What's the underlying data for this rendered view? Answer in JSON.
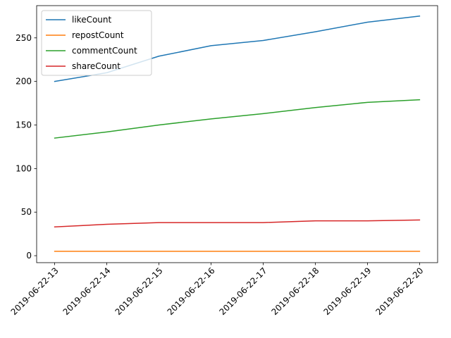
{
  "chart_data": {
    "type": "line",
    "title": "",
    "xlabel": "",
    "ylabel": "",
    "categories": [
      "2019-06-22-13",
      "2019-06-22-14",
      "2019-06-22-15",
      "2019-06-22-16",
      "2019-06-22-17",
      "2019-06-22-18",
      "2019-06-22-19",
      "2019-06-22-20"
    ],
    "ylim": [
      -8,
      287
    ],
    "yticks": [
      0,
      50,
      100,
      150,
      200,
      250
    ],
    "grid": false,
    "legend_position": "top-left",
    "series": [
      {
        "name": "likeCount",
        "color": "#1f77b4",
        "values": [
          200,
          210,
          229,
          241,
          247,
          257,
          268,
          275
        ]
      },
      {
        "name": "repostCount",
        "color": "#ff7f0e",
        "values": [
          5,
          5,
          5,
          5,
          5,
          5,
          5,
          5
        ]
      },
      {
        "name": "commentCount",
        "color": "#2ca02c",
        "values": [
          135,
          142,
          150,
          157,
          163,
          170,
          176,
          179
        ]
      },
      {
        "name": "shareCount",
        "color": "#d62728",
        "values": [
          33,
          36,
          38,
          38,
          38,
          40,
          40,
          41
        ]
      }
    ]
  }
}
